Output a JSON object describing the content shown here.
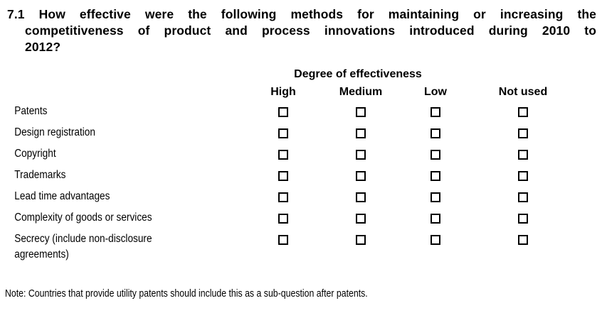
{
  "question": {
    "number": "7.1",
    "full_text": "7.1 How effective were the following methods for maintaining or increasing the competitiveness of product and process innovations introduced during 2010 to 2012?",
    "lines": [
      "7.1 How effective were the following methods for maintaining or increasing the",
      "competitiveness of product and process innovations introduced during 2010 to",
      "2012?"
    ]
  },
  "table": {
    "header": "Degree of effectiveness",
    "columns": [
      "High",
      "Medium",
      "Low",
      "Not used"
    ],
    "rows": [
      {
        "label": "Patents",
        "checked": [
          false,
          false,
          false,
          false
        ]
      },
      {
        "label": "Design registration",
        "checked": [
          false,
          false,
          false,
          false
        ]
      },
      {
        "label": "Copyright",
        "checked": [
          false,
          false,
          false,
          false
        ]
      },
      {
        "label": "Trademarks",
        "checked": [
          false,
          false,
          false,
          false
        ]
      },
      {
        "label": "Lead time advantages",
        "checked": [
          false,
          false,
          false,
          false
        ]
      },
      {
        "label": "Complexity of goods or services",
        "checked": [
          false,
          false,
          false,
          false
        ]
      },
      {
        "label": "Secrecy (include non-disclosure agreements)",
        "checked": [
          false,
          false,
          false,
          false
        ]
      }
    ]
  },
  "note": "Note: Countries that provide utility patents should include this as a sub-question after patents.",
  "colors": {
    "ink": "#000000",
    "background": "#ffffff"
  }
}
